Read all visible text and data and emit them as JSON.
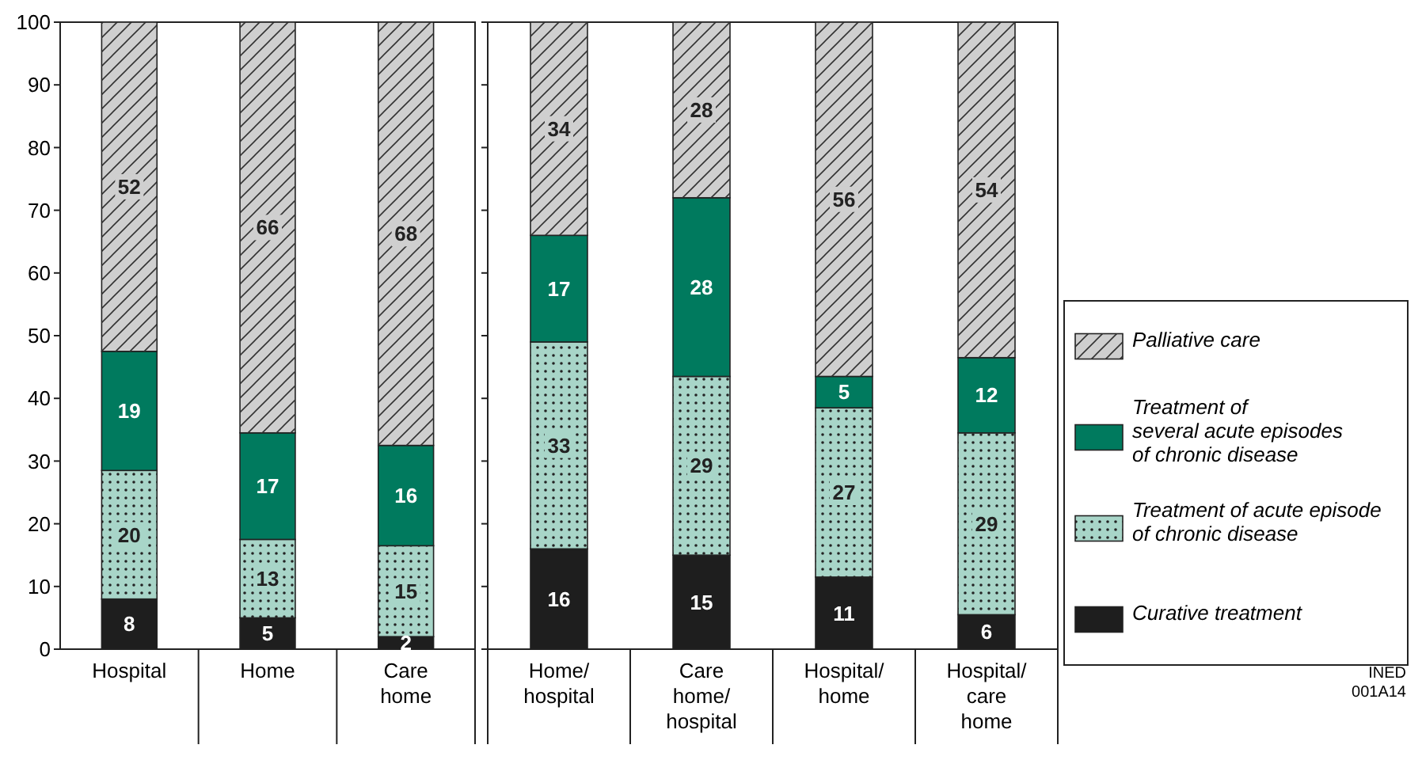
{
  "chart_data": [
    {
      "type": "bar",
      "stacked": true,
      "categories": [
        "Hospital",
        "Home",
        "Care\nhome"
      ],
      "ylim": [
        0,
        100
      ],
      "yticks": [
        0,
        10,
        20,
        30,
        40,
        50,
        60,
        70,
        80,
        90,
        100
      ],
      "grid": false,
      "legend": false,
      "series": [
        {
          "color": "#1e1e1e",
          "values": [
            8,
            5,
            2
          ],
          "value_labels": [
            "8",
            "5",
            "2"
          ]
        },
        {
          "color": "#a8d5c8",
          "values": [
            20.5,
            12.5,
            14.5
          ],
          "value_labels": [
            "20",
            "13",
            "15"
          ]
        },
        {
          "color": "#007a5e",
          "values": [
            19,
            17,
            16
          ],
          "value_labels": [
            "19",
            "17",
            "16"
          ]
        },
        {
          "color": "#cfcfcf",
          "values": [
            52.5,
            65.5,
            67.5
          ],
          "value_labels": [
            "52",
            "66",
            "68"
          ]
        }
      ]
    },
    {
      "type": "bar",
      "stacked": true,
      "categories": [
        "Home/\nhospital",
        "Care\nhome/\nhospital",
        "Hospital/\nhome",
        "Hospital/\ncare\nhome"
      ],
      "ylim": [
        0,
        100
      ],
      "yticks": [
        0,
        10,
        20,
        30,
        40,
        50,
        60,
        70,
        80,
        90,
        100
      ],
      "tick_labels": "x",
      "grid": false,
      "legend": "right",
      "annotations": [
        "INED\n001A14"
      ],
      "series": [
        {
          "name": "Curative treatment",
          "color": "#1e1e1e",
          "values": [
            16,
            15,
            11.5,
            5.5
          ],
          "value_labels": [
            "16",
            "15",
            "11",
            "6"
          ]
        },
        {
          "name": "Treatment of acute episode\nof chronic disease",
          "color": "#a8d5c8",
          "values": [
            33,
            28.5,
            27,
            29
          ],
          "value_labels": [
            "33",
            "29",
            "27",
            "29"
          ]
        },
        {
          "name": "Treatment of\nseveral acute episodes\nof chronic disease",
          "color": "#007a5e",
          "values": [
            17,
            28.5,
            5,
            12
          ],
          "value_labels": [
            "17",
            "28",
            "5",
            "12"
          ]
        },
        {
          "name": "Palliative care",
          "color": "#cfcfcf",
          "values": [
            34,
            28,
            56.5,
            53.5
          ],
          "value_labels": [
            "34",
            "28",
            "56",
            "54"
          ]
        }
      ]
    }
  ]
}
